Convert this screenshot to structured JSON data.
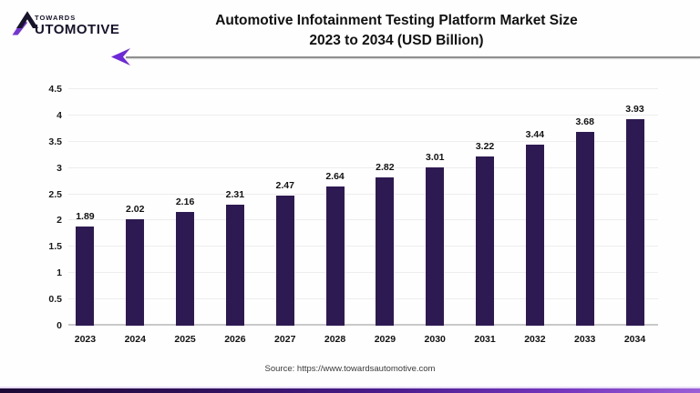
{
  "brand": {
    "logo_line1": "TOWARDS",
    "logo_line2": "UTOMOTIVE"
  },
  "header": {
    "title_line1": "Automotive Infotainment Testing Platform Market Size",
    "title_line2": "2023 to 2034 (USD Billion)"
  },
  "chart_data": {
    "type": "bar",
    "title": "Automotive Infotainment Testing Platform Market Size 2023 to 2034 (USD Billion)",
    "xlabel": "",
    "ylabel": "",
    "categories": [
      "2023",
      "2024",
      "2025",
      "2026",
      "2027",
      "2028",
      "2029",
      "2030",
      "2031",
      "2032",
      "2033",
      "2034"
    ],
    "values": [
      1.89,
      2.02,
      2.16,
      2.31,
      2.47,
      2.64,
      2.82,
      3.01,
      3.22,
      3.44,
      3.68,
      3.93
    ],
    "value_labels": [
      "1.89",
      "2.02",
      "2.16",
      "2.31",
      "2.47",
      "2.64",
      "2.82",
      "3.01",
      "3.22",
      "3.44",
      "3.68",
      "3.93"
    ],
    "ylim": [
      0,
      4.5
    ],
    "ytick_values": [
      0,
      0.5,
      1,
      1.5,
      2,
      2.5,
      3,
      3.5,
      4,
      4.5
    ],
    "ytick_labels": [
      "0",
      "0.5",
      "1",
      "1.5",
      "2",
      "2.5",
      "3",
      "3.5",
      "4",
      "4.5"
    ],
    "bar_color": "#2e1a52",
    "grid": "horizontal",
    "legend": "none"
  },
  "footer": {
    "source": "Source: https://www.towardsautomotive.com"
  },
  "colors": {
    "accent_purple": "#6d28d9",
    "logo_dark": "#17142b",
    "gradient_left": "#1d0b36",
    "gradient_right": "#9a5fd6"
  }
}
